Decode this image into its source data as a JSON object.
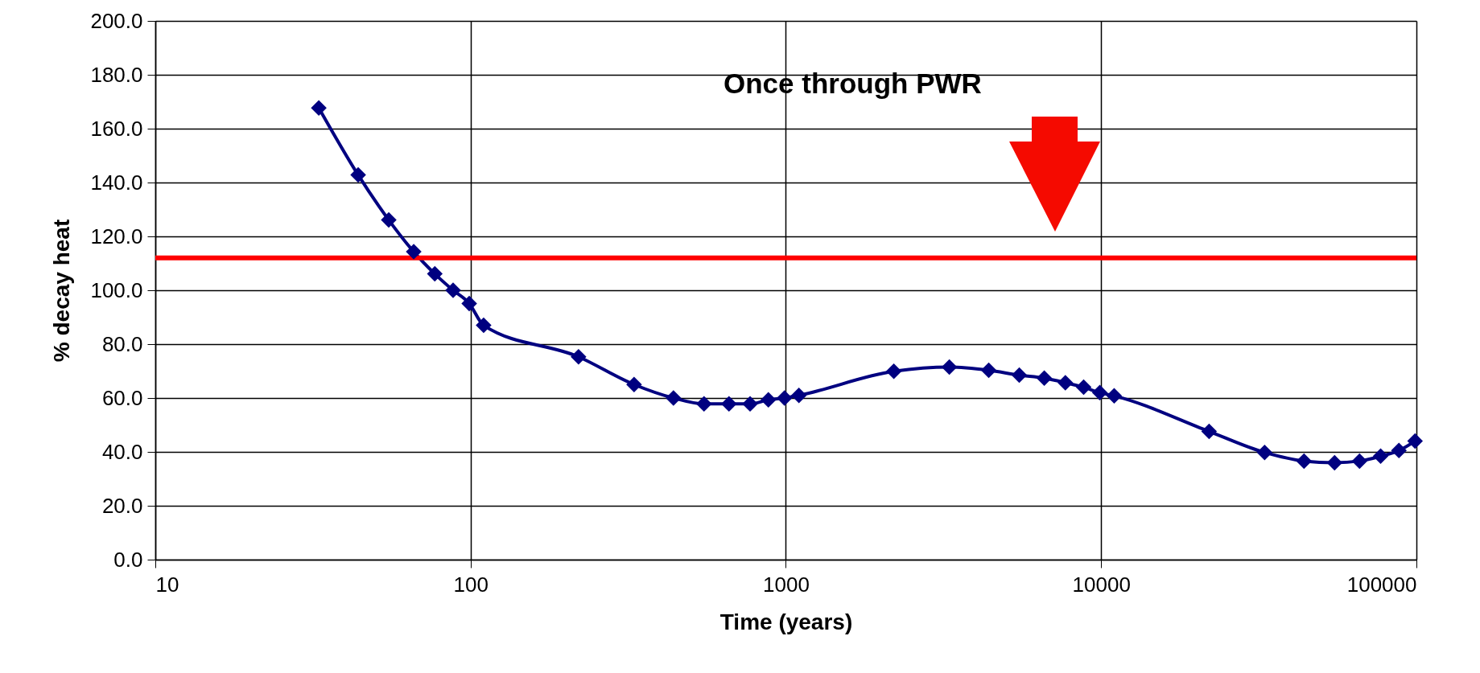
{
  "chart_data": {
    "type": "line",
    "xlabel": "Time (years)",
    "ylabel": "% decay heat",
    "annotations": [
      "Once through PWR"
    ],
    "x": [
      33,
      44,
      55,
      66,
      77,
      88,
      99,
      110,
      220,
      330,
      440,
      550,
      660,
      770,
      880,
      990,
      1100,
      2200,
      3300,
      4400,
      5500,
      6600,
      7700,
      8800,
      9900,
      11000,
      22000,
      33000,
      44000,
      55000,
      66000,
      77000,
      88000,
      99000
    ],
    "series": [
      {
        "color": "#000080",
        "values": [
          167.7,
          142.8,
          126.1,
          114.3,
          106.1,
          100.0,
          95.1,
          87.0,
          75.3,
          65.0,
          60.0,
          57.8,
          57.8,
          57.8,
          59.3,
          60.0,
          61.0,
          69.9,
          71.5,
          70.3,
          68.5,
          67.4,
          65.7,
          64.0,
          62.0,
          60.8,
          47.6,
          39.8,
          36.6,
          36.0,
          36.6,
          38.4,
          40.5,
          44.0
        ]
      }
    ],
    "log": "x",
    "xlim": [
      10,
      100000
    ],
    "xticks": [
      10,
      100,
      1000,
      10000,
      100000
    ],
    "ylim": [
      0,
      200
    ],
    "yticks": [
      {
        "value": 0,
        "label": "0.0"
      },
      {
        "value": 20,
        "label": "20.0"
      },
      {
        "value": 40,
        "label": "40.0"
      },
      {
        "value": 60,
        "label": "60.0"
      },
      {
        "value": 80,
        "label": "80.0"
      },
      {
        "value": 100,
        "label": "100.0"
      },
      {
        "value": 120,
        "label": "120.0"
      },
      {
        "value": 140,
        "label": "140.0"
      },
      {
        "value": 160,
        "label": "160.0"
      },
      {
        "value": 180,
        "label": "180.0"
      },
      {
        "value": 200,
        "label": "200.0"
      }
    ],
    "ref_lines": [
      {
        "axis": "y",
        "value": 112,
        "color": "#ff0000"
      }
    ],
    "grid": true,
    "marker": "diamond",
    "line_style": "solid"
  }
}
